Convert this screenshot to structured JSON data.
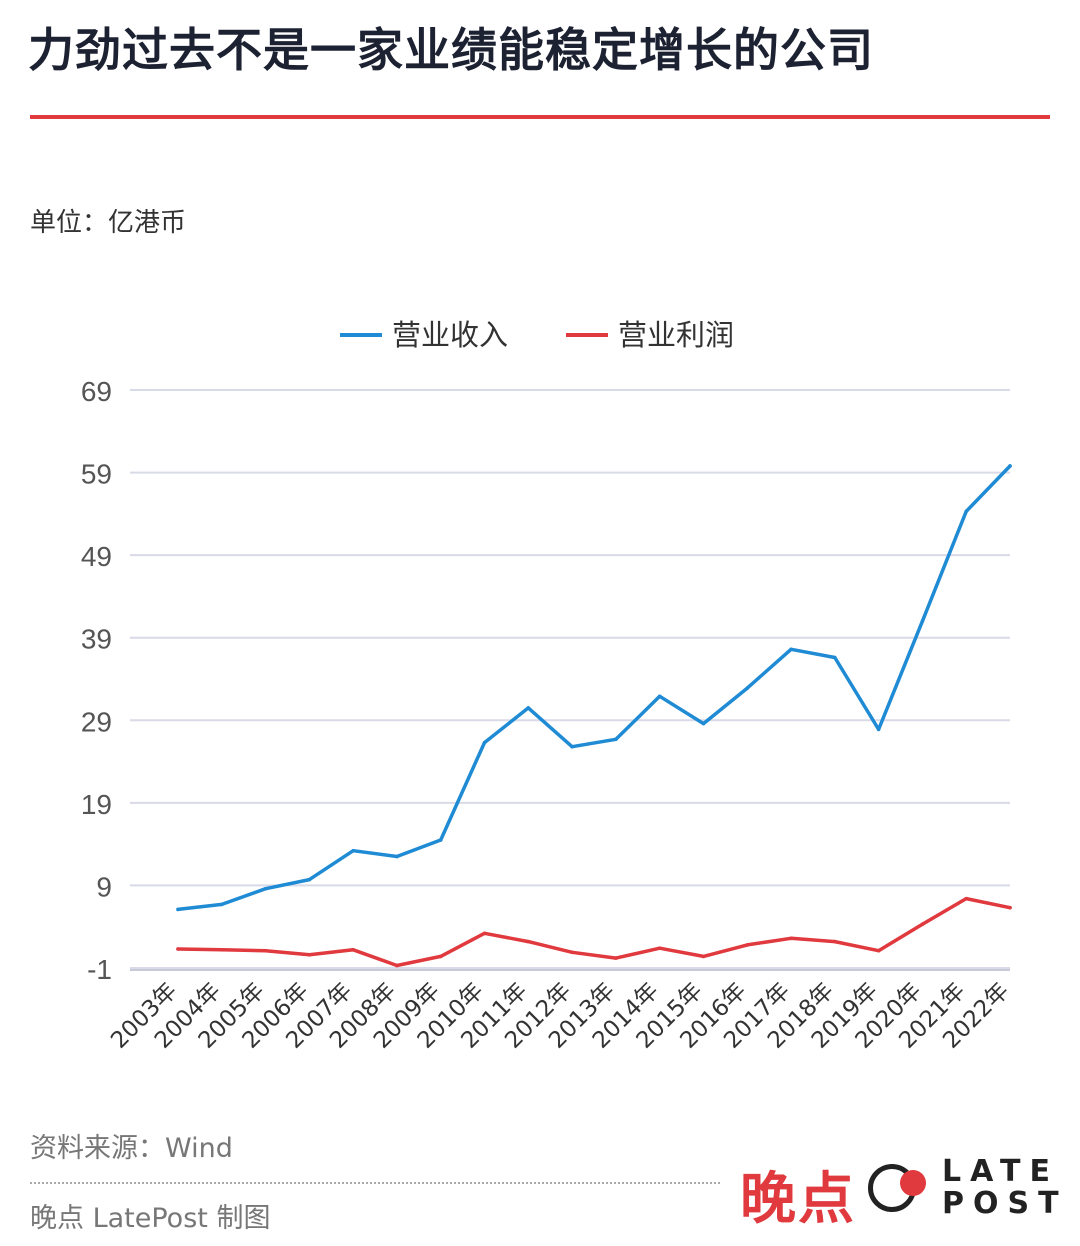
{
  "header": {
    "title": "力劲过去不是一家业绩能稳定增长的公司"
  },
  "unit_label": "单位：亿港币",
  "footer": {
    "source": "资料来源：Wind",
    "credit": "晚点 LatePost 制图"
  },
  "logo": {
    "cn": "晚点",
    "en_line1": "LATE",
    "en_line2": "POST"
  },
  "colors": {
    "revenue": "#1f8bd4",
    "profit": "#e0393e",
    "accent": "#e0393e",
    "grid": "#d9dae8"
  },
  "chart_data": {
    "type": "line",
    "x": [
      "2003年",
      "2004年",
      "2005年",
      "2006年",
      "2007年",
      "2008年",
      "2009年",
      "2010年",
      "2011年",
      "2012年",
      "2013年",
      "2014年",
      "2015年",
      "2016年",
      "2017年",
      "2018年",
      "2019年",
      "2020年",
      "2021年",
      "2022年"
    ],
    "series": [
      {
        "name": "营业收入",
        "values": [
          6.1,
          6.7,
          8.6,
          9.7,
          13.2,
          12.5,
          14.5,
          26.3,
          30.5,
          25.8,
          26.7,
          31.9,
          28.6,
          32.9,
          37.6,
          36.6,
          27.9,
          41.0,
          54.3,
          59.8
        ]
      },
      {
        "name": "营业利润",
        "values": [
          1.3,
          1.2,
          1.1,
          0.6,
          1.2,
          -0.7,
          0.4,
          3.2,
          2.2,
          0.9,
          0.2,
          1.4,
          0.4,
          1.8,
          2.6,
          2.2,
          1.1,
          4.3,
          7.4,
          6.3
        ]
      }
    ],
    "yticks": [
      -1,
      9,
      19,
      29,
      39,
      49,
      59,
      69
    ],
    "ylim": [
      -1,
      69
    ],
    "grid": true,
    "legend_position": "top-center"
  }
}
